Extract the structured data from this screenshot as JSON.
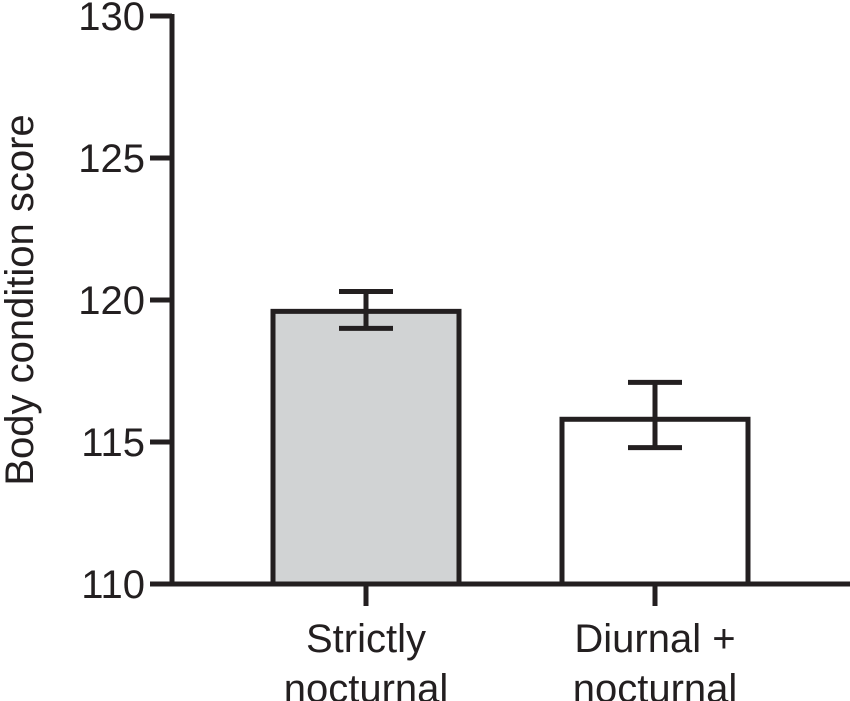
{
  "chart_data": {
    "type": "bar",
    "categories": [
      [
        "Strictly",
        "nocturnal"
      ],
      [
        "Diurnal +",
        "nocturnal"
      ]
    ],
    "values": [
      119.6,
      115.8
    ],
    "error_upper": [
      120.3,
      117.1
    ],
    "error_lower": [
      119.0,
      114.8
    ],
    "bar_fill": [
      "#d1d3d4",
      "#ffffff"
    ],
    "bar_stroke": "#231f20",
    "ylabel": "Body condition score",
    "xlabel": "",
    "title": "",
    "ylim": [
      110,
      130
    ],
    "yticks": [
      "110",
      "115",
      "120",
      "125",
      "130"
    ],
    "grid": false
  }
}
